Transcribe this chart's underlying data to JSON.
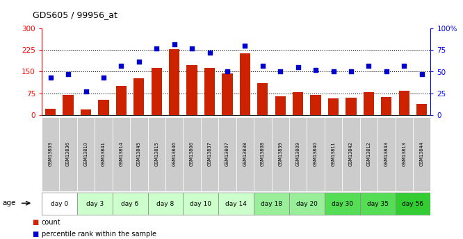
{
  "title": "GDS605 / 99956_at",
  "samples": [
    "GSM13803",
    "GSM13836",
    "GSM13810",
    "GSM13841",
    "GSM13814",
    "GSM13845",
    "GSM13815",
    "GSM13846",
    "GSM13806",
    "GSM13837",
    "GSM13807",
    "GSM13838",
    "GSM13808",
    "GSM13839",
    "GSM13809",
    "GSM13840",
    "GSM13811",
    "GSM13842",
    "GSM13812",
    "GSM13843",
    "GSM13813",
    "GSM13844"
  ],
  "counts": [
    20,
    68,
    18,
    52,
    100,
    128,
    163,
    228,
    173,
    163,
    143,
    213,
    110,
    65,
    78,
    68,
    58,
    60,
    78,
    62,
    83,
    38
  ],
  "percentiles": [
    43,
    47,
    27,
    43,
    57,
    62,
    77,
    82,
    77,
    72,
    50,
    80,
    57,
    50,
    55,
    52,
    50,
    50,
    57,
    50,
    57,
    47
  ],
  "age_groups": [
    {
      "label": "day 0",
      "indices": [
        0,
        1
      ],
      "color": "#ffffff"
    },
    {
      "label": "day 3",
      "indices": [
        2,
        3
      ],
      "color": "#ccffcc"
    },
    {
      "label": "day 6",
      "indices": [
        4,
        5
      ],
      "color": "#ccffcc"
    },
    {
      "label": "day 8",
      "indices": [
        6,
        7
      ],
      "color": "#ccffcc"
    },
    {
      "label": "day 10",
      "indices": [
        8,
        9
      ],
      "color": "#ccffcc"
    },
    {
      "label": "day 14",
      "indices": [
        10,
        11
      ],
      "color": "#ccffcc"
    },
    {
      "label": "day 18",
      "indices": [
        12,
        13
      ],
      "color": "#99ee99"
    },
    {
      "label": "day 20",
      "indices": [
        14,
        15
      ],
      "color": "#99ee99"
    },
    {
      "label": "day 30",
      "indices": [
        16,
        17
      ],
      "color": "#55dd55"
    },
    {
      "label": "day 35",
      "indices": [
        18,
        19
      ],
      "color": "#55dd55"
    },
    {
      "label": "day 56",
      "indices": [
        20,
        21
      ],
      "color": "#33cc33"
    }
  ],
  "left_ylim": [
    0,
    300
  ],
  "right_ylim": [
    0,
    100
  ],
  "left_yticks": [
    0,
    75,
    150,
    225,
    300
  ],
  "right_yticks": [
    0,
    25,
    50,
    75,
    100
  ],
  "right_yticklabels": [
    "0",
    "25",
    "50",
    "75",
    "100%"
  ],
  "bar_color": "#cc2200",
  "scatter_color": "#0000cc",
  "bg_sample_label": "#cccccc"
}
